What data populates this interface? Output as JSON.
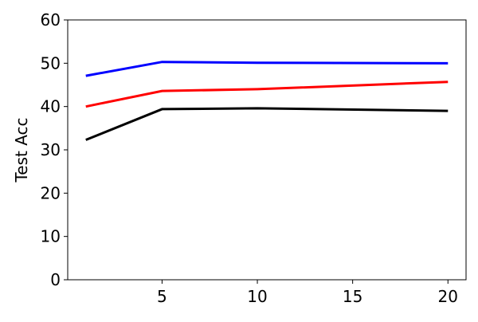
{
  "chart_data": {
    "type": "line",
    "y_label": "Test Acc",
    "x": [
      1,
      5,
      10,
      20
    ],
    "series": [
      {
        "color": "#0000ff",
        "values": [
          47.1,
          50.3,
          50.1,
          50.0
        ]
      },
      {
        "color": "#ff0000",
        "values": [
          40.0,
          43.6,
          44.0,
          45.7
        ]
      },
      {
        "color": "#000000",
        "values": [
          32.3,
          39.4,
          39.6,
          39.0
        ]
      }
    ],
    "xlim": [
      0.05,
      20.95
    ],
    "xticks": [
      5,
      10,
      15,
      20
    ],
    "ylim": [
      0,
      60
    ],
    "yticks": [
      0,
      10,
      20,
      30,
      40,
      50,
      60
    ]
  }
}
